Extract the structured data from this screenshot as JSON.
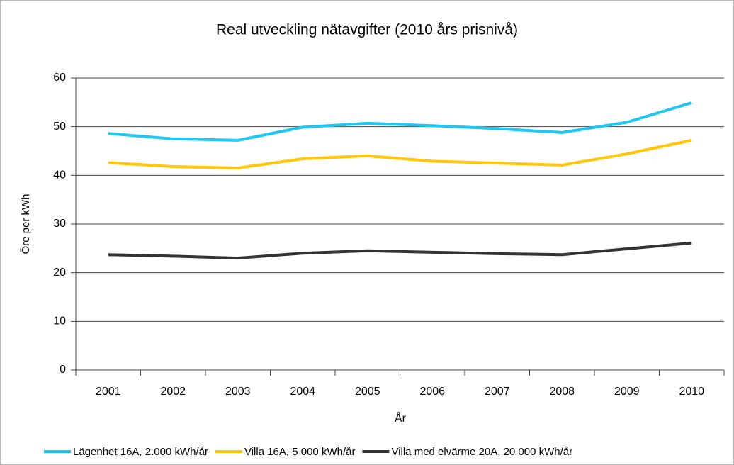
{
  "chart_data": {
    "type": "line",
    "title": "Real utveckling nätavgifter (2010 års prisnivå)",
    "x_label": "År",
    "y_label": "Öre per kWh",
    "categories": [
      "2001",
      "2002",
      "2003",
      "2004",
      "2005",
      "2006",
      "2007",
      "2008",
      "2009",
      "2010"
    ],
    "series": [
      {
        "name": "Lägenhet 16A, 2.000 kWh/år",
        "color": "#1ec8f0",
        "values": [
          48.6,
          47.5,
          47.2,
          49.9,
          50.7,
          50.2,
          49.6,
          48.8,
          50.9,
          54.9
        ]
      },
      {
        "name": "Villa 16A, 5 000 kWh/år",
        "color": "#ffc60a",
        "values": [
          42.6,
          41.8,
          41.5,
          43.4,
          44.0,
          42.9,
          42.5,
          42.1,
          44.4,
          47.2
        ]
      },
      {
        "name": "Villa med elvärme 20A, 20 000 kWh/år",
        "color": "#333333",
        "values": [
          23.7,
          23.4,
          23.0,
          24.0,
          24.5,
          24.2,
          23.9,
          23.7,
          24.9,
          26.1
        ]
      }
    ],
    "ylim": [
      0,
      60
    ],
    "yticks": [
      0,
      10,
      20,
      30,
      40,
      50,
      60
    ],
    "grid": true,
    "legend": "bottom"
  }
}
